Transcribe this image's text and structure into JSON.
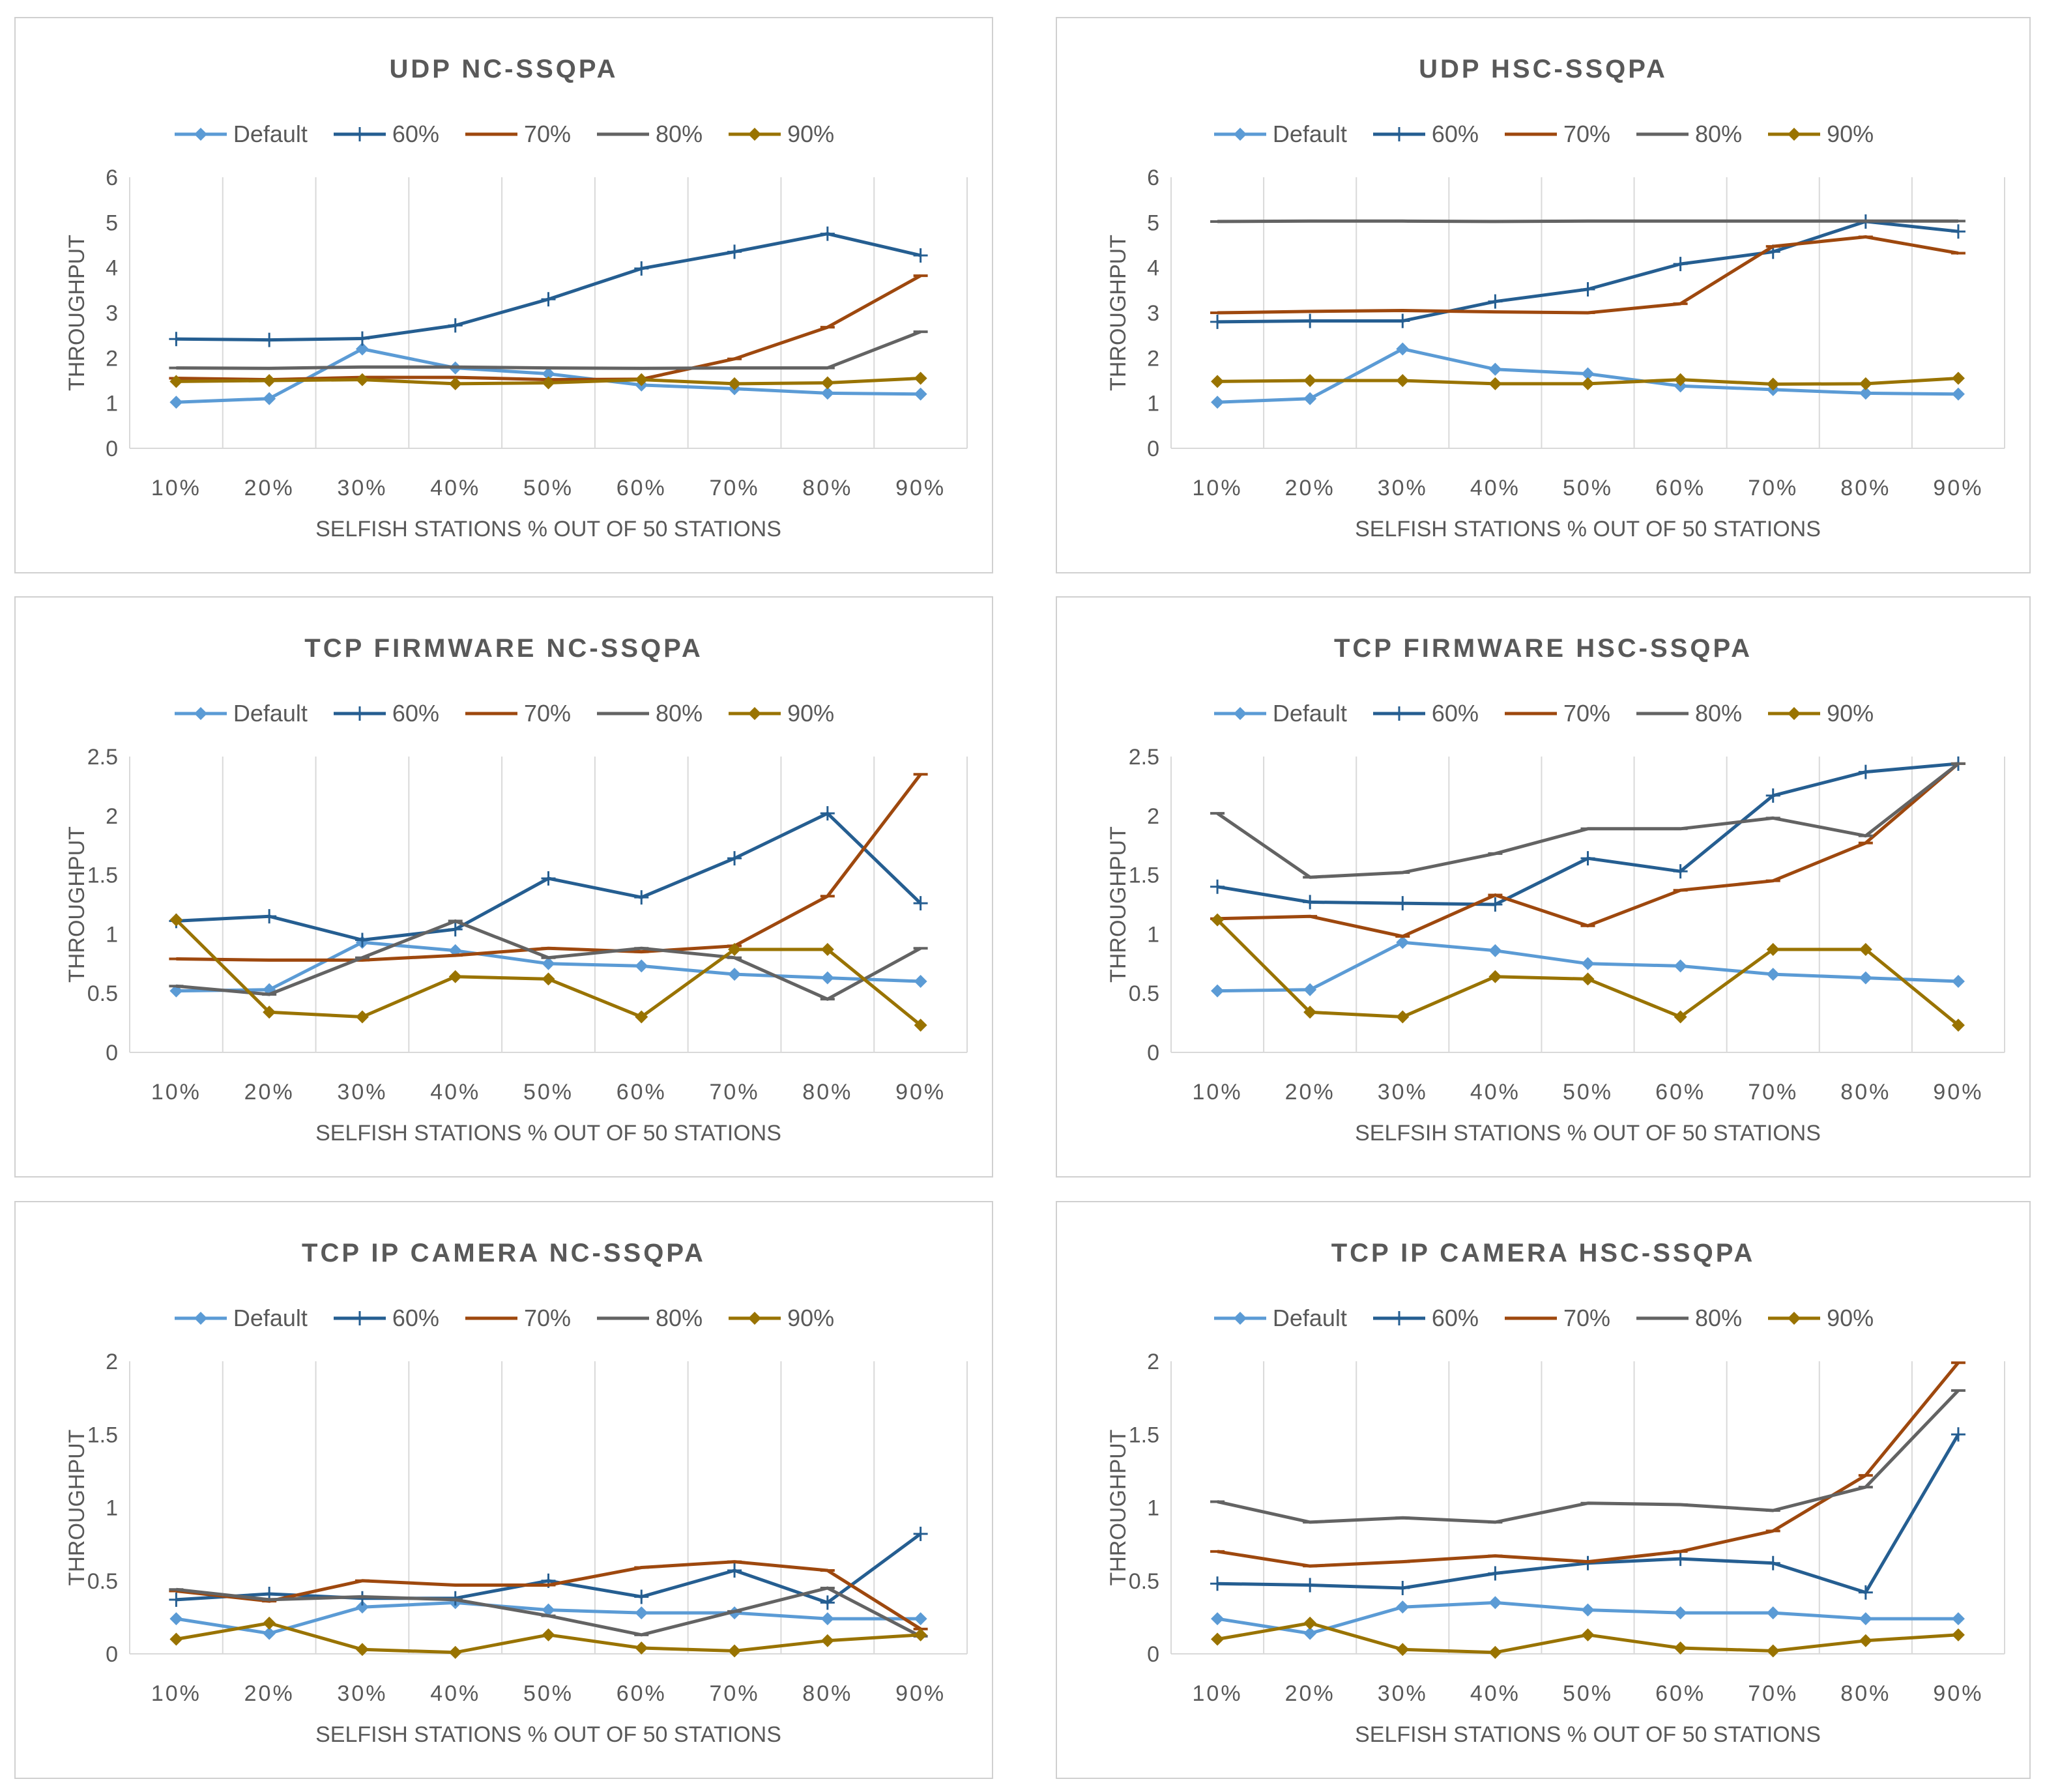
{
  "series_style": [
    {
      "name": "Default",
      "color": "#5b9bd5",
      "marker": "diamond"
    },
    {
      "name": "60%",
      "color": "#255e91",
      "marker": "plus"
    },
    {
      "name": "70%",
      "color": "#9e480e",
      "marker": "dash"
    },
    {
      "name": "80%",
      "color": "#636363",
      "marker": "dash"
    },
    {
      "name": "90%",
      "color": "#997300",
      "marker": "diamond"
    }
  ],
  "chart_data": [
    {
      "type": "line",
      "title": "UDP NC-SSQPA",
      "xlabel": "SELFISH STATIONS % OUT OF 50 STATIONS",
      "ylabel": "THROUGHPUT",
      "categories": [
        "10%",
        "20%",
        "30%",
        "40%",
        "50%",
        "60%",
        "70%",
        "80%",
        "90%"
      ],
      "ylim": [
        0,
        6
      ],
      "yticks": [
        "0",
        "1",
        "2",
        "3",
        "4",
        "5",
        "6"
      ],
      "legend": "top",
      "grid": "vertical",
      "series": [
        {
          "name": "Default",
          "values": [
            1.02,
            1.1,
            2.2,
            1.78,
            1.65,
            1.4,
            1.32,
            1.22,
            1.2
          ]
        },
        {
          "name": "60%",
          "values": [
            2.42,
            2.4,
            2.43,
            2.72,
            3.3,
            3.98,
            4.35,
            4.75,
            4.27
          ]
        },
        {
          "name": "70%",
          "values": [
            1.55,
            1.52,
            1.57,
            1.57,
            1.52,
            1.53,
            1.98,
            2.68,
            3.82
          ]
        },
        {
          "name": "80%",
          "values": [
            1.78,
            1.77,
            1.8,
            1.8,
            1.78,
            1.77,
            1.78,
            1.78,
            2.58
          ]
        },
        {
          "name": "90%",
          "values": [
            1.48,
            1.5,
            1.52,
            1.43,
            1.45,
            1.52,
            1.43,
            1.45,
            1.55
          ]
        }
      ]
    },
    {
      "type": "line",
      "title": "UDP HSC-SSQPA",
      "xlabel": "SELFISH STATIONS % OUT OF 50 STATIONS",
      "ylabel": "THROUGHPUT",
      "categories": [
        "10%",
        "20%",
        "30%",
        "40%",
        "50%",
        "60%",
        "70%",
        "80%",
        "90%"
      ],
      "ylim": [
        0,
        6
      ],
      "yticks": [
        "0",
        "1",
        "2",
        "3",
        "4",
        "5",
        "6"
      ],
      "legend": "top",
      "grid": "vertical",
      "series": [
        {
          "name": "Default",
          "values": [
            1.02,
            1.1,
            2.2,
            1.75,
            1.65,
            1.38,
            1.3,
            1.22,
            1.2
          ]
        },
        {
          "name": "60%",
          "values": [
            2.8,
            2.82,
            2.82,
            3.25,
            3.52,
            4.08,
            4.35,
            5.02,
            4.8
          ]
        },
        {
          "name": "70%",
          "values": [
            3.0,
            3.03,
            3.05,
            3.02,
            3.0,
            3.2,
            4.47,
            4.68,
            4.32
          ]
        },
        {
          "name": "80%",
          "values": [
            5.02,
            5.03,
            5.03,
            5.02,
            5.03,
            5.03,
            5.03,
            5.03,
            5.03
          ]
        },
        {
          "name": "90%",
          "values": [
            1.48,
            1.5,
            1.5,
            1.43,
            1.43,
            1.52,
            1.42,
            1.43,
            1.55
          ]
        }
      ]
    },
    {
      "type": "line",
      "title": "TCP FIRMWARE NC-SSQPA",
      "xlabel": "SELFISH STATIONS % OUT OF 50 STATIONS",
      "ylabel": "THROUGHPUT",
      "categories": [
        "10%",
        "20%",
        "30%",
        "40%",
        "50%",
        "60%",
        "70%",
        "80%",
        "90%"
      ],
      "ylim": [
        0,
        2.5
      ],
      "yticks": [
        "0",
        "0.5",
        "1",
        "1.5",
        "2",
        "2.5"
      ],
      "legend": "top",
      "grid": "vertical",
      "series": [
        {
          "name": "Default",
          "values": [
            0.52,
            0.53,
            0.93,
            0.86,
            0.75,
            0.73,
            0.66,
            0.63,
            0.6
          ]
        },
        {
          "name": "60%",
          "values": [
            1.11,
            1.15,
            0.95,
            1.04,
            1.47,
            1.31,
            1.64,
            2.02,
            1.26
          ]
        },
        {
          "name": "70%",
          "values": [
            0.79,
            0.78,
            0.78,
            0.82,
            0.88,
            0.85,
            0.9,
            1.32,
            2.35
          ]
        },
        {
          "name": "80%",
          "values": [
            0.56,
            0.49,
            0.8,
            1.11,
            0.8,
            0.88,
            0.8,
            0.45,
            0.88
          ]
        },
        {
          "name": "90%",
          "values": [
            1.12,
            0.34,
            0.3,
            0.64,
            0.62,
            0.3,
            0.87,
            0.87,
            0.23
          ]
        }
      ]
    },
    {
      "type": "line",
      "title": "TCP FIRMWARE HSC-SSQPA",
      "xlabel": "SELFSIH STATIONS % OUT OF 50 STATIONS",
      "ylabel": "THROUGHPUT",
      "categories": [
        "10%",
        "20%",
        "30%",
        "40%",
        "50%",
        "60%",
        "70%",
        "80%",
        "90%"
      ],
      "ylim": [
        0,
        2.5
      ],
      "yticks": [
        "0",
        "0.5",
        "1",
        "1.5",
        "2",
        "2.5"
      ],
      "legend": "top",
      "grid": "vertical",
      "series": [
        {
          "name": "Default",
          "values": [
            0.52,
            0.53,
            0.93,
            0.86,
            0.75,
            0.73,
            0.66,
            0.63,
            0.6
          ]
        },
        {
          "name": "60%",
          "values": [
            1.4,
            1.27,
            1.26,
            1.25,
            1.64,
            1.53,
            2.17,
            2.37,
            2.44
          ]
        },
        {
          "name": "70%",
          "values": [
            1.13,
            1.15,
            0.98,
            1.33,
            1.07,
            1.37,
            1.45,
            1.77,
            2.44
          ]
        },
        {
          "name": "80%",
          "values": [
            2.02,
            1.48,
            1.52,
            1.68,
            1.89,
            1.89,
            1.98,
            1.83,
            2.44
          ]
        },
        {
          "name": "90%",
          "values": [
            1.12,
            0.34,
            0.3,
            0.64,
            0.62,
            0.3,
            0.87,
            0.87,
            0.23
          ]
        }
      ]
    },
    {
      "type": "line",
      "title": "TCP IP CAMERA NC-SSQPA",
      "xlabel": "SELFISH STATIONS % OUT OF 50 STATIONS",
      "ylabel": "THROUGHPUT",
      "categories": [
        "10%",
        "20%",
        "30%",
        "40%",
        "50%",
        "60%",
        "70%",
        "80%",
        "90%"
      ],
      "ylim": [
        0,
        2
      ],
      "yticks": [
        "0",
        "0.5",
        "1",
        "1.5",
        "2"
      ],
      "legend": "top",
      "grid": "vertical",
      "series": [
        {
          "name": "Default",
          "values": [
            0.24,
            0.14,
            0.32,
            0.35,
            0.3,
            0.28,
            0.28,
            0.24,
            0.24
          ]
        },
        {
          "name": "60%",
          "values": [
            0.37,
            0.41,
            0.38,
            0.38,
            0.5,
            0.39,
            0.57,
            0.35,
            0.82
          ]
        },
        {
          "name": "70%",
          "values": [
            0.43,
            0.36,
            0.5,
            0.47,
            0.47,
            0.59,
            0.63,
            0.57,
            0.17
          ]
        },
        {
          "name": "80%",
          "values": [
            0.44,
            0.37,
            0.39,
            0.37,
            0.26,
            0.13,
            0.29,
            0.45,
            0.12
          ]
        },
        {
          "name": "90%",
          "values": [
            0.1,
            0.21,
            0.03,
            0.01,
            0.13,
            0.04,
            0.02,
            0.09,
            0.13
          ]
        }
      ]
    },
    {
      "type": "line",
      "title": "TCP IP CAMERA HSC-SSQPA",
      "xlabel": "SELFISH STATIONS % OUT OF 50 STATIONS",
      "ylabel": "THROUGHPUT",
      "categories": [
        "10%",
        "20%",
        "30%",
        "40%",
        "50%",
        "60%",
        "70%",
        "80%",
        "90%"
      ],
      "ylim": [
        0,
        2
      ],
      "yticks": [
        "0",
        "0.5",
        "1",
        "1.5",
        "2"
      ],
      "legend": "top",
      "grid": "vertical",
      "series": [
        {
          "name": "Default",
          "values": [
            0.24,
            0.14,
            0.32,
            0.35,
            0.3,
            0.28,
            0.28,
            0.24,
            0.24
          ]
        },
        {
          "name": "60%",
          "values": [
            0.48,
            0.47,
            0.45,
            0.55,
            0.62,
            0.65,
            0.62,
            0.42,
            1.5
          ]
        },
        {
          "name": "70%",
          "values": [
            0.7,
            0.6,
            0.63,
            0.67,
            0.63,
            0.7,
            0.84,
            1.22,
            1.99
          ]
        },
        {
          "name": "80%",
          "values": [
            1.04,
            0.9,
            0.93,
            0.9,
            1.03,
            1.02,
            0.98,
            1.14,
            1.8
          ]
        },
        {
          "name": "90%",
          "values": [
            0.1,
            0.21,
            0.03,
            0.01,
            0.13,
            0.04,
            0.02,
            0.09,
            0.13
          ]
        }
      ]
    }
  ]
}
